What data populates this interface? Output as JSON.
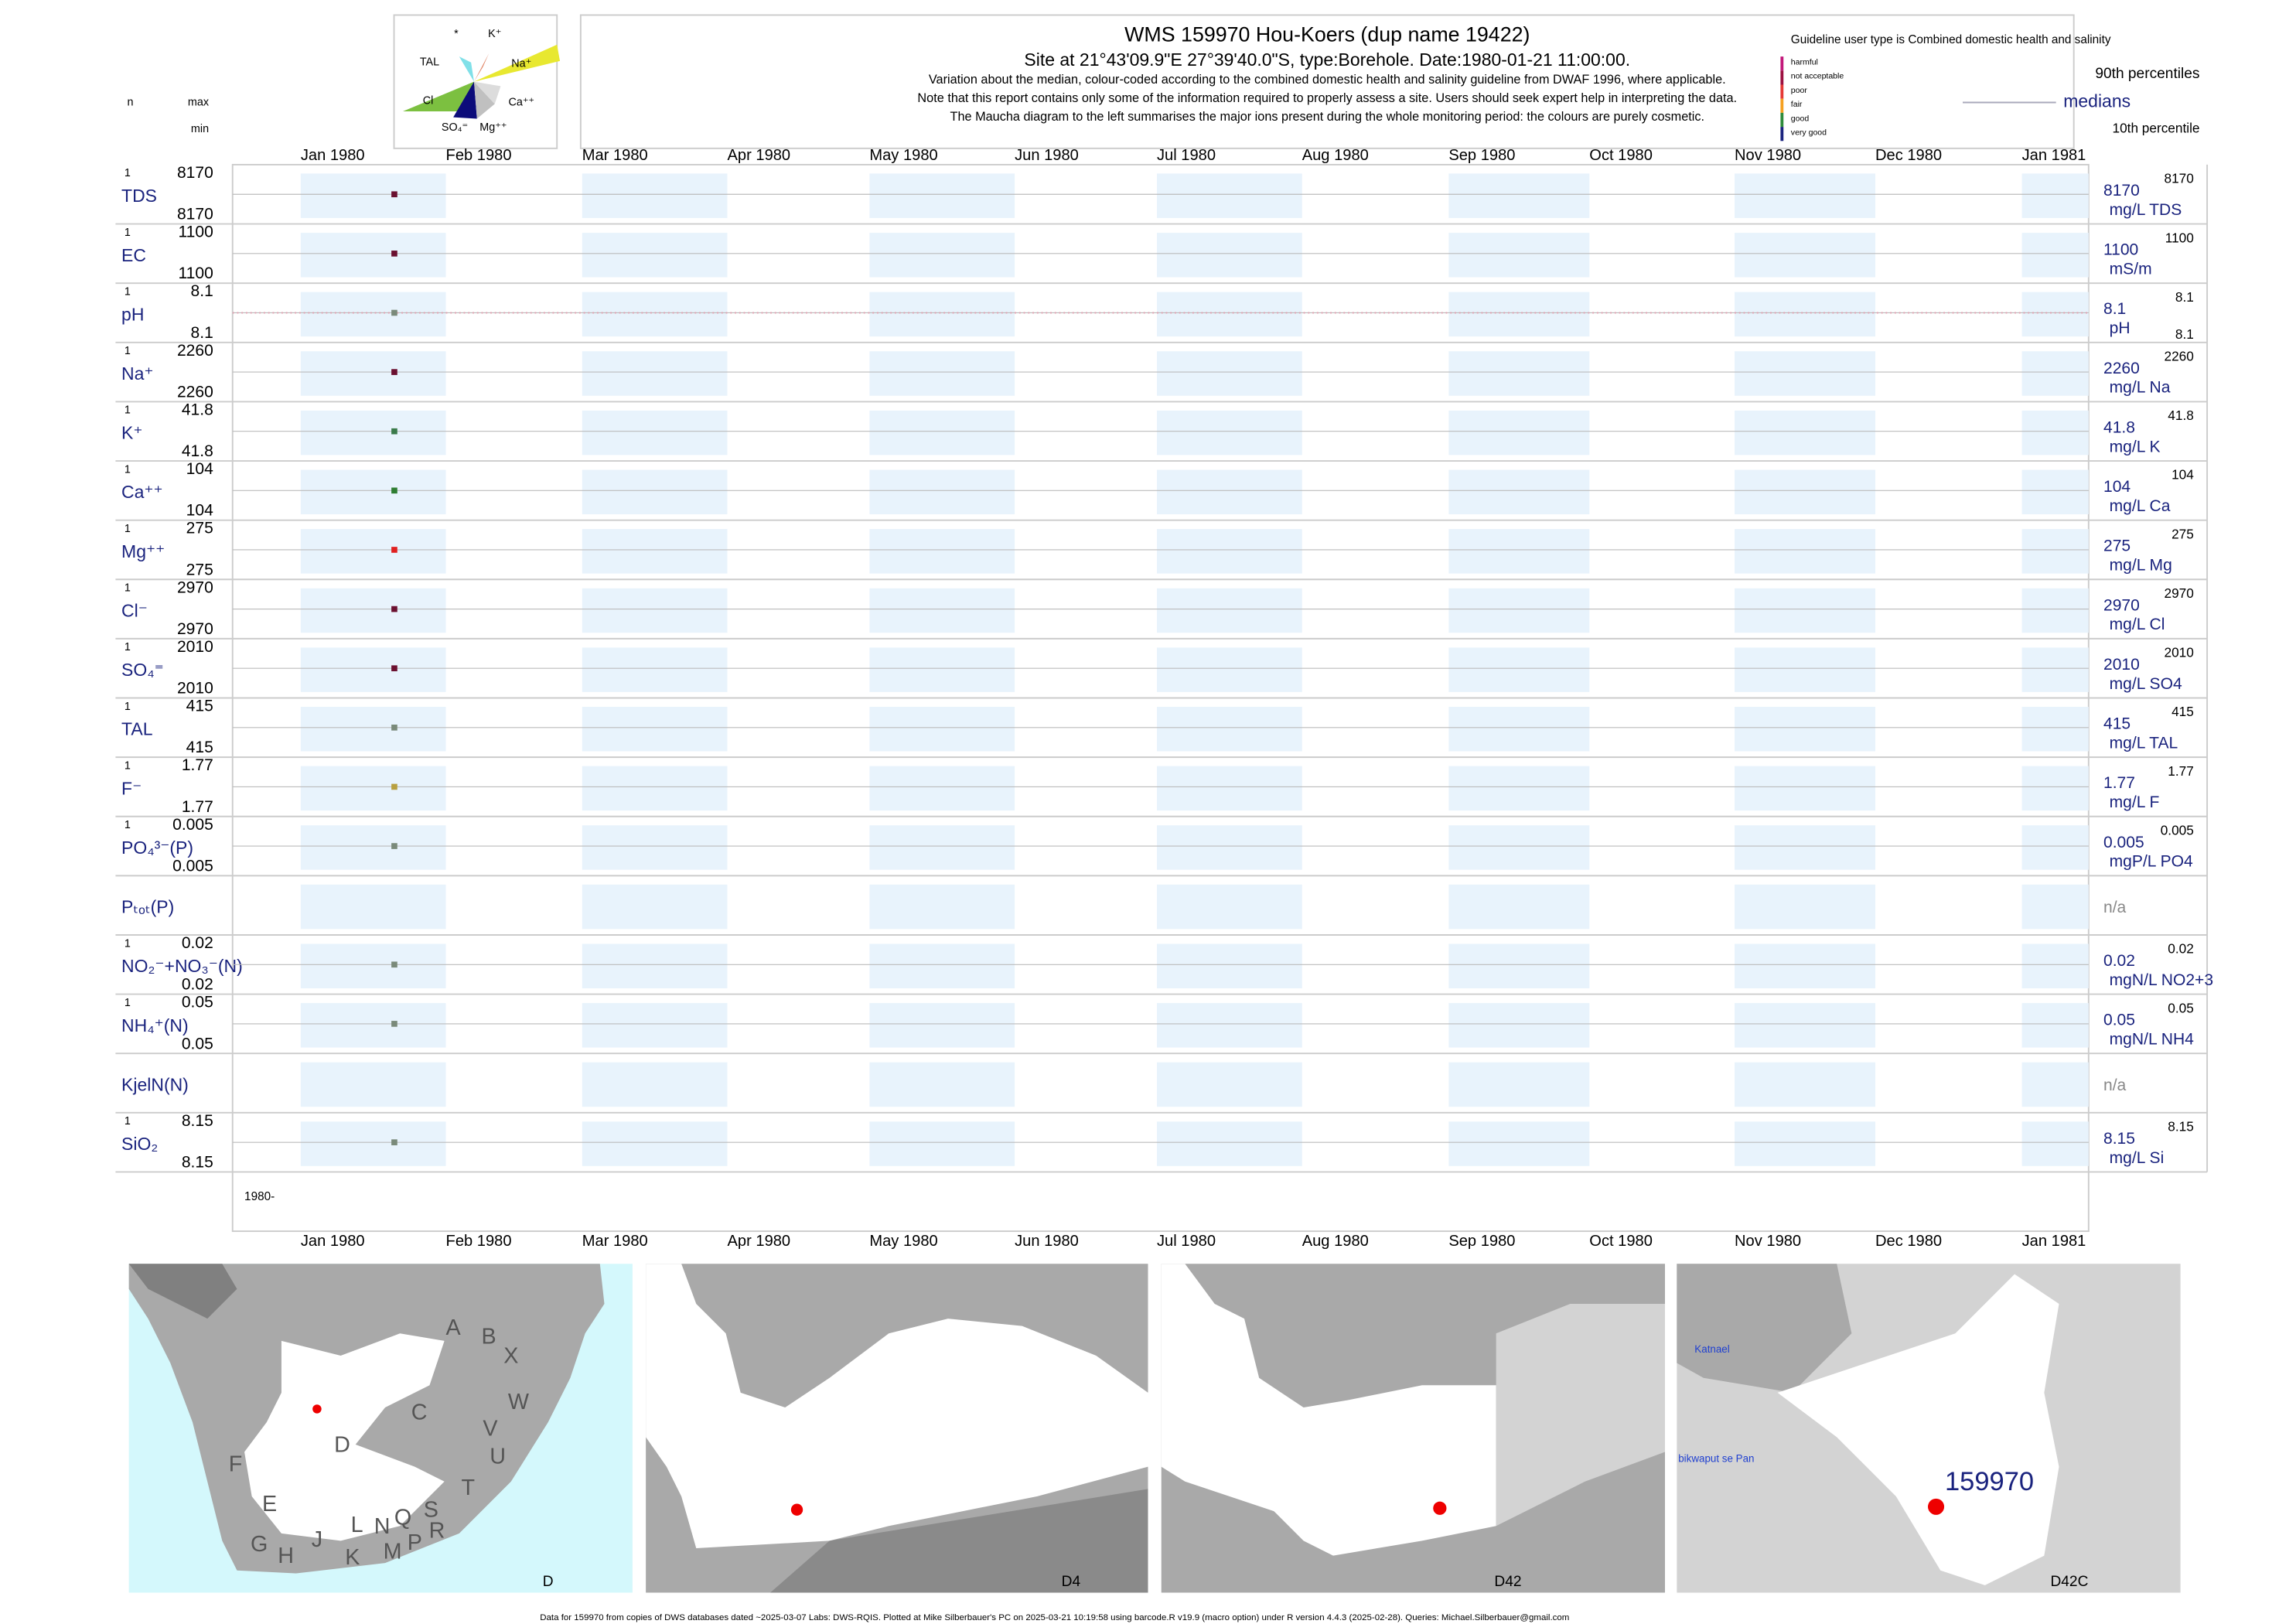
{
  "header": {
    "title": "WMS 159970  Hou-Koers (dup name 19422)",
    "site": "Site at 21°43'09.9\"E 27°39'40.0\"S, type:Borehole. Date:1980-01-21 11:00:00.",
    "notes": [
      "Variation about the median,  colour-coded according to the combined domestic health and salinity guideline from DWAF 1996, where applicable.",
      "Note that this report contains only some of the information required to properly assess a site. Users should seek expert help in interpreting the data.",
      "The Maucha diagram to the left summarises the major ions present during the whole monitoring period: the colours are purely cosmetic."
    ]
  },
  "maucha": {
    "labels": [
      "*",
      "K⁺",
      "TAL",
      "Na⁺",
      "Cl",
      "Ca⁺⁺",
      "SO₄⁼",
      "Mg⁺⁺"
    ]
  },
  "columns": {
    "n": "n",
    "max": "max",
    "min": "min"
  },
  "legend": {
    "user_type": "Guideline user type is Combined domestic health and salinity",
    "classes": [
      {
        "label": "harmful",
        "color": "#c2187a"
      },
      {
        "label": "not acceptable",
        "color": "#9c1040"
      },
      {
        "label": "poor",
        "color": "#e53935"
      },
      {
        "label": "fair",
        "color": "#f5a020"
      },
      {
        "label": "good",
        "color": "#2e8b3a"
      },
      {
        "label": "very good",
        "color": "#1a237e"
      }
    ],
    "p90": "90th percentiles",
    "median": "medians",
    "p10": "10th percentile"
  },
  "months": [
    "Jan 1980",
    "Feb 1980",
    "Mar 1980",
    "Apr 1980",
    "May 1980",
    "Jun 1980",
    "Jul 1980",
    "Aug 1980",
    "Sep 1980",
    "Oct 1980",
    "Nov 1980",
    "Dec 1980",
    "Jan 1981"
  ],
  "start_label": "1980-",
  "rows": [
    {
      "name": "TDS",
      "n": 1,
      "max": 8170,
      "min": 8170,
      "median": 8170,
      "unit": "mg/L TDS",
      "p90": 8170,
      "color": "#6b1030"
    },
    {
      "name": "EC",
      "n": 1,
      "max": 1100,
      "min": 1100,
      "median": 1100,
      "unit": "mS/m",
      "p90": 1100,
      "color": "#6b1030"
    },
    {
      "name": "pH",
      "n": 1,
      "max": 8.1,
      "min": 8.1,
      "median": 8.1,
      "unit": "pH",
      "p90": 8.1,
      "p10": 8.1,
      "color": "#7a8a7a"
    },
    {
      "name": "Na⁺",
      "n": 1,
      "max": 2260,
      "min": 2260,
      "median": 2260,
      "unit": "mg/L Na",
      "p90": 2260,
      "color": "#6b1030"
    },
    {
      "name": "K⁺",
      "n": 1,
      "max": 41.8,
      "min": 41.8,
      "median": 41.8,
      "unit": "mg/L K",
      "p90": 41.8,
      "color": "#3a7a4a"
    },
    {
      "name": "Ca⁺⁺",
      "n": 1,
      "max": 104,
      "min": 104,
      "median": 104,
      "unit": "mg/L Ca",
      "p90": 104,
      "color": "#2e7d32"
    },
    {
      "name": "Mg⁺⁺",
      "n": 1,
      "max": 275,
      "min": 275,
      "median": 275,
      "unit": "mg/L Mg",
      "p90": 275,
      "color": "#e02020"
    },
    {
      "name": "Cl⁻",
      "n": 1,
      "max": 2970,
      "min": 2970,
      "median": 2970,
      "unit": "mg/L Cl",
      "p90": 2970,
      "color": "#6b1030"
    },
    {
      "name": "SO₄⁼",
      "n": 1,
      "max": 2010,
      "min": 2010,
      "median": 2010,
      "unit": "mg/L SO4",
      "p90": 2010,
      "color": "#6b1030"
    },
    {
      "name": "TAL",
      "n": 1,
      "max": 415,
      "min": 415,
      "median": 415,
      "unit": "mg/L TAL",
      "p90": 415,
      "color": "#7a8a7a"
    },
    {
      "name": "F⁻",
      "n": 1,
      "max": 1.77,
      "min": 1.77,
      "median": 1.77,
      "unit": "mg/L F",
      "p90": 1.77,
      "color": "#b8a040"
    },
    {
      "name": "PO₄³⁻(P)",
      "n": 1,
      "max": 0.005,
      "min": 0.005,
      "median": 0.005,
      "unit": "mgP/L PO4",
      "p90": 0.005,
      "color": "#7a8a7a"
    },
    {
      "name": "Pₜₒₜ(P)",
      "status": "n/a"
    },
    {
      "name": "NO₂⁻+NO₃⁻(N)",
      "n": 1,
      "max": 0.02,
      "min": 0.02,
      "median": 0.02,
      "unit": "mgN/L NO2+3",
      "p90": 0.02,
      "color": "#7a8a7a"
    },
    {
      "name": "NH₄⁺(N)",
      "n": 1,
      "max": 0.05,
      "min": 0.05,
      "median": 0.05,
      "unit": "mgN/L NH4",
      "p90": 0.05,
      "color": "#7a8a7a"
    },
    {
      "name": "KjelN(N)",
      "status": "n/a"
    },
    {
      "name": "SiO₂",
      "n": 1,
      "max": 8.15,
      "min": 8.15,
      "median": 8.15,
      "unit": "mg/L Si",
      "p90": 8.15,
      "color": "#7a8a7a"
    }
  ],
  "maps": [
    {
      "label": "D",
      "letters": [
        "A",
        "B",
        "X",
        "W",
        "C",
        "V",
        "U",
        "D",
        "F",
        "E",
        "T",
        "S",
        "R",
        "Q",
        "P",
        "N",
        "L",
        "M",
        "K",
        "J",
        "H",
        "G"
      ]
    },
    {
      "label": "D4"
    },
    {
      "label": "D42"
    },
    {
      "label": "D42C",
      "places": [
        "Katnael",
        "bikwaput se Pan"
      ],
      "site": "159970"
    }
  ],
  "footer": "Data for 159970 from copies of DWS databases dated ~2025-03-07 Labs: DWS-RQIS. Plotted at Mike Silberbauer's PC on 2025-03-21 10:19:58 using barcode.R v19.9 (macro option) under R version 4.4.3 (2025-02-28). Queries: Michael.Silberbauer@gmail.com"
}
